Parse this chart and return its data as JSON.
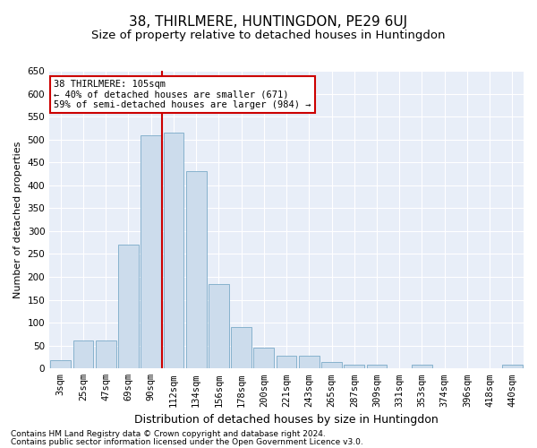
{
  "title1": "38, THIRLMERE, HUNTINGDON, PE29 6UJ",
  "title2": "Size of property relative to detached houses in Huntingdon",
  "xlabel": "Distribution of detached houses by size in Huntingdon",
  "ylabel": "Number of detached properties",
  "categories": [
    "3sqm",
    "25sqm",
    "47sqm",
    "69sqm",
    "90sqm",
    "112sqm",
    "134sqm",
    "156sqm",
    "178sqm",
    "200sqm",
    "221sqm",
    "243sqm",
    "265sqm",
    "287sqm",
    "309sqm",
    "331sqm",
    "353sqm",
    "374sqm",
    "396sqm",
    "418sqm",
    "440sqm"
  ],
  "values": [
    18,
    62,
    62,
    270,
    510,
    515,
    430,
    185,
    90,
    45,
    28,
    28,
    14,
    8,
    8,
    0,
    8,
    0,
    0,
    0,
    8
  ],
  "bar_color": "#ccdcec",
  "bar_edge_color": "#7aaac8",
  "vline_x_index": 4,
  "vline_color": "#cc0000",
  "annotation_line1": "38 THIRLMERE: 105sqm",
  "annotation_line2": "← 40% of detached houses are smaller (671)",
  "annotation_line3": "59% of semi-detached houses are larger (984) →",
  "annotation_box_color": "#ffffff",
  "annotation_box_edge": "#cc0000",
  "ylim": [
    0,
    650
  ],
  "yticks": [
    0,
    50,
    100,
    150,
    200,
    250,
    300,
    350,
    400,
    450,
    500,
    550,
    600,
    650
  ],
  "bg_color": "#e8eef8",
  "footnote1": "Contains HM Land Registry data © Crown copyright and database right 2024.",
  "footnote2": "Contains public sector information licensed under the Open Government Licence v3.0.",
  "title1_fontsize": 11,
  "title2_fontsize": 9.5,
  "xlabel_fontsize": 9,
  "ylabel_fontsize": 8,
  "tick_fontsize": 7.5,
  "annotation_fontsize": 7.5,
  "footnote_fontsize": 6.5
}
